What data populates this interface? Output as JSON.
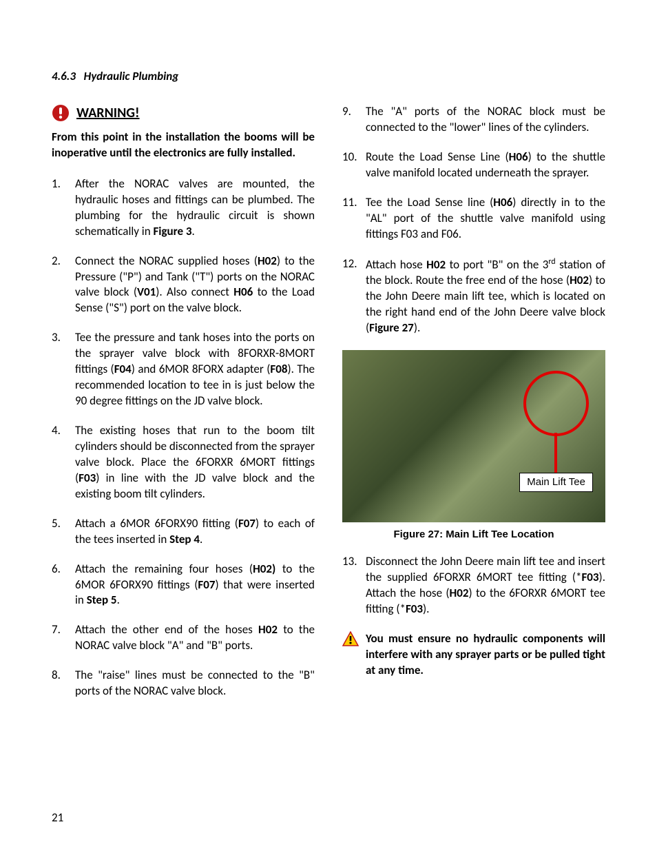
{
  "section": {
    "number": "4.6.3",
    "title": "Hydraulic Plumbing"
  },
  "warning": {
    "label": "WARNING!",
    "note_parts": [
      "From this point in the installation the booms will be inoperative until the electronics are fully installed."
    ],
    "icon_color": "#c01818",
    "icon_bang": "#ffffff"
  },
  "steps_left": [
    {
      "segs": [
        {
          "t": "After the NORAC valves are mounted, the hydraulic hoses and fittings can be plumbed. The plumbing for the hydraulic circuit is shown schematically in "
        },
        {
          "t": "Figure 3",
          "b": 1
        },
        {
          "t": "."
        }
      ]
    },
    {
      "segs": [
        {
          "t": "Connect the NORAC supplied hoses ("
        },
        {
          "t": "H02",
          "b": 1
        },
        {
          "t": ") to the Pressure (\"P\") and Tank (\"T\") ports on the NORAC valve block ("
        },
        {
          "t": "V01",
          "b": 1
        },
        {
          "t": "). Also connect "
        },
        {
          "t": "H06",
          "b": 1
        },
        {
          "t": " to the Load Sense (\"S\") port on the valve block."
        }
      ]
    },
    {
      "segs": [
        {
          "t": "Tee the pressure and tank hoses into the ports on the sprayer valve block with 8FORXR-8MORT fittings ("
        },
        {
          "t": "F04",
          "b": 1
        },
        {
          "t": ") and 6MOR 8FORX adapter ("
        },
        {
          "t": "F08",
          "b": 1
        },
        {
          "t": ").   The recommended location to tee in is just below the 90 degree fittings on the JD valve block."
        }
      ]
    },
    {
      "segs": [
        {
          "t": "The existing hoses that run to the boom tilt cylinders should be disconnected from the sprayer valve block.  Place the 6FORXR 6MORT fittings ("
        },
        {
          "t": "F03",
          "b": 1
        },
        {
          "t": ") in line with the JD valve block and the existing boom tilt cylinders."
        }
      ]
    },
    {
      "segs": [
        {
          "t": "Attach a 6MOR 6FORX90 fitting ("
        },
        {
          "t": "F07",
          "b": 1
        },
        {
          "t": ") to each of the tees inserted in "
        },
        {
          "t": "Step 4",
          "b": 1
        },
        {
          "t": "."
        }
      ]
    },
    {
      "segs": [
        {
          "t": "Attach the remaining four hoses ("
        },
        {
          "t": "H02)",
          "b": 1
        },
        {
          "t": " to the 6MOR 6FORX90 fittings ("
        },
        {
          "t": "F07",
          "b": 1
        },
        {
          "t": ") that were inserted in "
        },
        {
          "t": "Step 5",
          "b": 1
        },
        {
          "t": "."
        }
      ]
    },
    {
      "segs": [
        {
          "t": "Attach the other end of the hoses "
        },
        {
          "t": "H02",
          "b": 1
        },
        {
          "t": " to the NORAC valve block \"A\" and \"B\" ports."
        }
      ]
    },
    {
      "segs": [
        {
          "t": "The \"raise\" lines must be connected to the \"B\" ports of the NORAC valve block."
        }
      ]
    }
  ],
  "steps_right": [
    {
      "segs": [
        {
          "t": "The \"A\" ports of the NORAC block must be connected to the \"lower\" lines of the cylinders."
        }
      ]
    },
    {
      "segs": [
        {
          "t": "Route the Load Sense Line ("
        },
        {
          "t": "H06",
          "b": 1
        },
        {
          "t": ") to the shuttle valve manifold located underneath the sprayer."
        }
      ]
    },
    {
      "segs": [
        {
          "t": "Tee the Load Sense line ("
        },
        {
          "t": "H06",
          "b": 1
        },
        {
          "t": ") directly in to the \"AL\" port of the shuttle valve manifold using fittings F03 and F06."
        }
      ]
    },
    {
      "segs": [
        {
          "t": "Attach hose "
        },
        {
          "t": "H02",
          "b": 1
        },
        {
          "t": " to port \"B\" on the 3"
        },
        {
          "t": "rd",
          "sup": 1
        },
        {
          "t": " station of the block.  Route the free end of the hose ("
        },
        {
          "t": "H02",
          "b": 1
        },
        {
          "t": ") to the John Deere main lift tee, which is located on the right hand end of the John Deere valve block ("
        },
        {
          "t": "Figure 27",
          "b": 1
        },
        {
          "t": ")."
        }
      ]
    }
  ],
  "figure": {
    "callout": "Main Lift Tee",
    "caption": "Figure 27: Main Lift Tee Location",
    "circle_color": "#e00000"
  },
  "step13": {
    "segs": [
      {
        "t": "Disconnect the John Deere main lift tee and insert the supplied 6FORXR 6MORT tee fitting (*"
      },
      {
        "t": "F03",
        "b": 1
      },
      {
        "t": ").  Attach the hose ("
      },
      {
        "t": "H02",
        "b": 1
      },
      {
        "t": ") to the 6FORXR 6MORT tee fitting (*"
      },
      {
        "t": "F03",
        "b": 1
      },
      {
        "t": ")."
      }
    ]
  },
  "caution": {
    "text": "You must ensure no hydraulic components will interfere with any sprayer parts or be pulled tight at any time.",
    "icon_fill": "#ffcc00",
    "icon_stroke": "#c01818"
  },
  "page_number": "21"
}
